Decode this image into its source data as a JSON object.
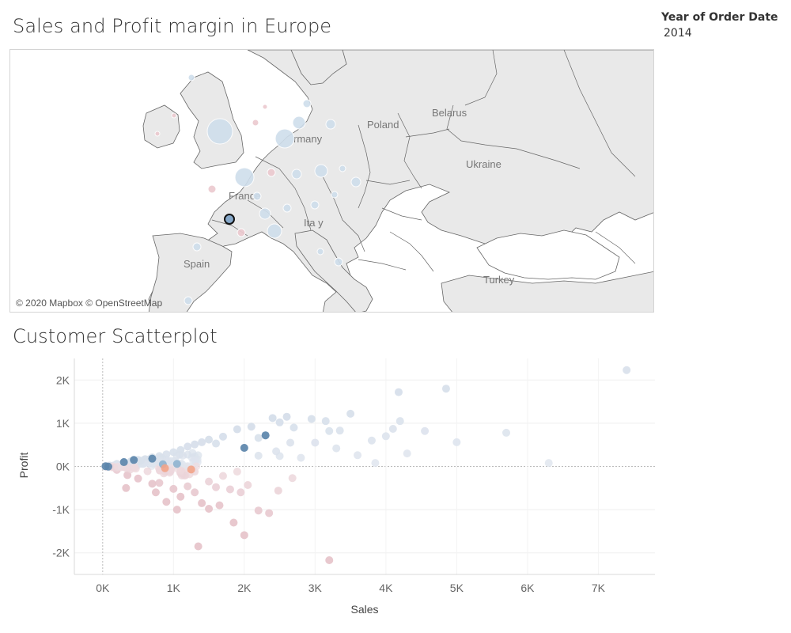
{
  "dashboard": {
    "map_title": "Sales and Profit margin in Europe",
    "scatter_title": "Customer Scatterplot"
  },
  "filter": {
    "title": "Year of Order Date",
    "value": "2014"
  },
  "map": {
    "attribution": "© 2020 Mapbox © OpenStreetMap",
    "labels": {
      "poland": "Poland",
      "belarus": "Belarus",
      "germany": "rmany",
      "ukraine": "Ukraine",
      "france": "France",
      "italy": "Ita y",
      "spain": "Spain",
      "turkey": "Turkey"
    },
    "colors": {
      "land": "#e8e8e8",
      "water": "#ffffff",
      "border": "#555555",
      "bubble_blue": "#cfdeec",
      "bubble_red": "#ecc9cf",
      "selected": "#86a8c9"
    }
  },
  "chart_data": {
    "type": "scatter",
    "xlabel": "Sales",
    "ylabel": "Profit",
    "xlim": [
      -400,
      7800
    ],
    "ylim": [
      -2500,
      2500
    ],
    "x_ticks": [
      "0K",
      "1K",
      "2K",
      "3K",
      "4K",
      "5K",
      "6K",
      "7K"
    ],
    "y_ticks": [
      "2K",
      "1K",
      "0K",
      "-1K",
      "-2K"
    ],
    "legend": "none",
    "grid": true,
    "points": [
      [
        7400,
        2230
      ],
      [
        4850,
        1800
      ],
      [
        4180,
        1720
      ],
      [
        3500,
        1220
      ],
      [
        4200,
        1050
      ],
      [
        4100,
        870
      ],
      [
        4550,
        820
      ],
      [
        5700,
        780
      ],
      [
        5000,
        560
      ],
      [
        3800,
        600
      ],
      [
        4000,
        700
      ],
      [
        3200,
        820
      ],
      [
        2950,
        1100
      ],
      [
        3150,
        1050
      ],
      [
        3350,
        830
      ],
      [
        2700,
        900
      ],
      [
        2600,
        1150
      ],
      [
        2500,
        1020
      ],
      [
        2400,
        1120
      ],
      [
        2300,
        720
      ],
      [
        2000,
        430
      ],
      [
        1900,
        860
      ],
      [
        2200,
        660
      ],
      [
        2100,
        920
      ],
      [
        1700,
        690
      ],
      [
        1600,
        530
      ],
      [
        1500,
        620
      ],
      [
        1400,
        560
      ],
      [
        1300,
        510
      ],
      [
        1200,
        460
      ],
      [
        1100,
        380
      ],
      [
        1000,
        330
      ],
      [
        900,
        280
      ],
      [
        800,
        240
      ],
      [
        700,
        210
      ],
      [
        600,
        170
      ],
      [
        500,
        150
      ],
      [
        400,
        120
      ],
      [
        300,
        100
      ],
      [
        200,
        60
      ],
      [
        100,
        20
      ],
      [
        40,
        0
      ],
      [
        3300,
        420
      ],
      [
        3600,
        260
      ],
      [
        3850,
        80
      ],
      [
        2800,
        200
      ],
      [
        2500,
        240
      ],
      [
        2650,
        550
      ],
      [
        2450,
        350
      ],
      [
        2200,
        250
      ],
      [
        6300,
        80
      ],
      [
        4300,
        300
      ],
      [
        3000,
        550
      ],
      [
        200,
        -80
      ],
      [
        350,
        -200
      ],
      [
        500,
        -280
      ],
      [
        330,
        -500
      ],
      [
        700,
        -400
      ],
      [
        750,
        -600
      ],
      [
        900,
        -820
      ],
      [
        1100,
        -700
      ],
      [
        1200,
        -460
      ],
      [
        1300,
        -600
      ],
      [
        1400,
        -850
      ],
      [
        1500,
        -980
      ],
      [
        1050,
        -1000
      ],
      [
        1650,
        -900
      ],
      [
        1800,
        -530
      ],
      [
        2050,
        -430
      ],
      [
        2200,
        -1020
      ],
      [
        2350,
        -1080
      ],
      [
        1850,
        -1300
      ],
      [
        2000,
        -1590
      ],
      [
        1350,
        -1850
      ],
      [
        3200,
        -2170
      ],
      [
        2480,
        -560
      ],
      [
        2680,
        -270
      ],
      [
        1700,
        -220
      ],
      [
        1500,
        -350
      ],
      [
        1300,
        -120
      ],
      [
        1100,
        -150
      ],
      [
        900,
        -30
      ],
      [
        1600,
        -480
      ],
      [
        1000,
        -520
      ],
      [
        800,
        -380
      ],
      [
        1950,
        -600
      ],
      [
        1250,
        -60
      ],
      [
        1900,
        -120
      ],
      [
        2300,
        720
      ],
      [
        300,
        100
      ],
      [
        2000,
        430
      ],
      [
        700,
        180
      ],
      [
        440,
        140
      ],
      [
        1250,
        -70
      ],
      [
        880,
        -40
      ]
    ],
    "highlight": {
      "dark_blue": [
        [
          40,
          5
        ],
        [
          80,
          -5
        ],
        [
          300,
          100
        ],
        [
          440,
          150
        ],
        [
          700,
          180
        ],
        [
          2000,
          430
        ],
        [
          2300,
          720
        ]
      ],
      "medium_blue": [
        [
          850,
          50
        ],
        [
          1050,
          60
        ]
      ],
      "orange": [
        [
          880,
          -40
        ],
        [
          1250,
          -70
        ]
      ]
    }
  }
}
